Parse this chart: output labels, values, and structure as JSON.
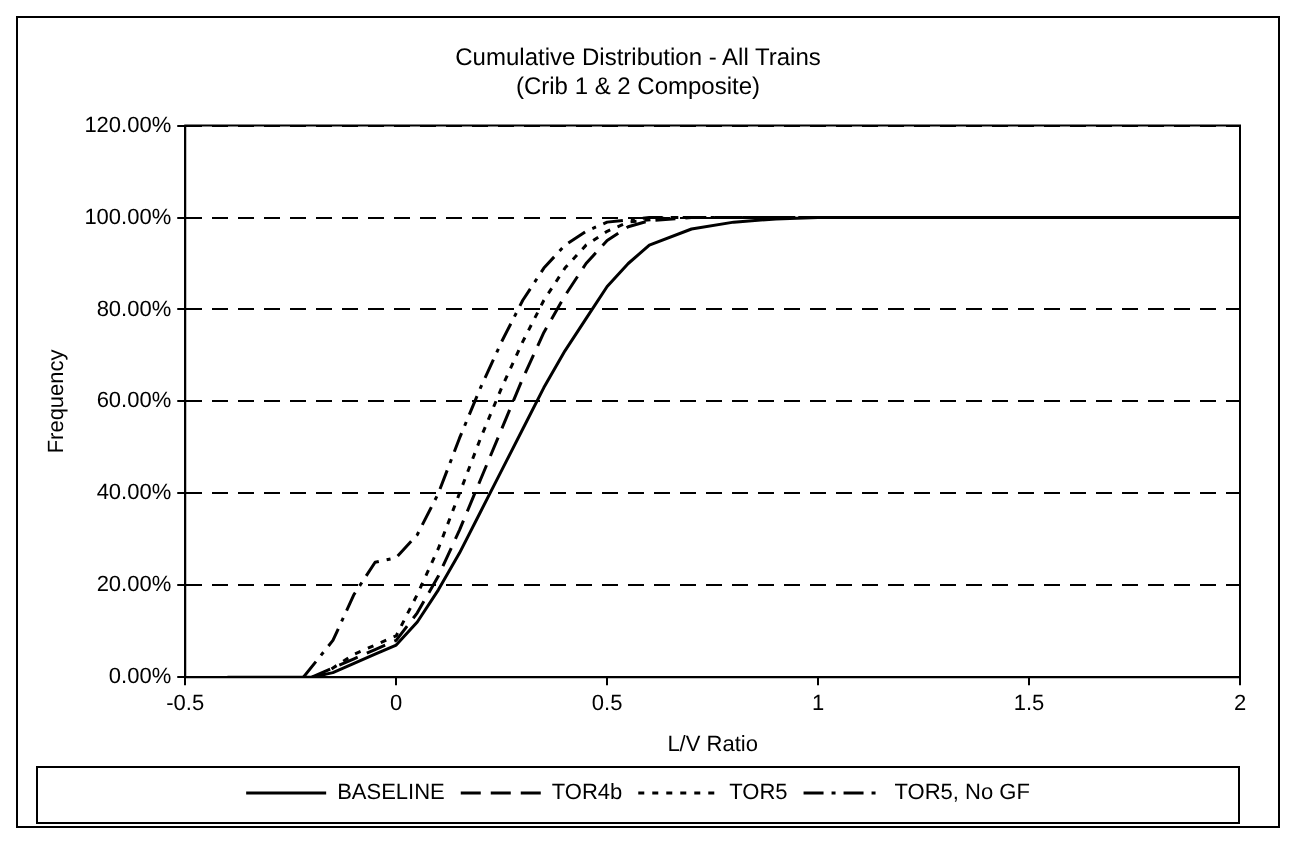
{
  "chart_data": {
    "type": "line",
    "title": [
      "Cumulative Distribution - All Trains",
      "(Crib 1 & 2 Composite)"
    ],
    "xlabel": "L/V Ratio",
    "ylabel": "Frequency",
    "xlim": [
      -0.5,
      2
    ],
    "xticks": [
      -0.5,
      0,
      0.5,
      1,
      1.5,
      2
    ],
    "ylim": [
      0,
      120
    ],
    "yticks": [
      {
        "value": 0,
        "label": "0.00%"
      },
      {
        "value": 20,
        "label": "20.00%"
      },
      {
        "value": 40,
        "label": "40.00%"
      },
      {
        "value": 60,
        "label": "60.00%"
      },
      {
        "value": 80,
        "label": "80.00%"
      },
      {
        "value": 100,
        "label": "100.00%"
      },
      {
        "value": 120,
        "label": "120.00%"
      }
    ],
    "grid": "y",
    "legend": "bottom",
    "marker": "none",
    "series": [
      {
        "name": "BASELINE",
        "color": "#000000",
        "line_style": "solid",
        "x": [
          -0.4,
          -0.2,
          -0.15,
          -0.1,
          -0.05,
          0,
          0.05,
          0.1,
          0.15,
          0.2,
          0.25,
          0.3,
          0.35,
          0.4,
          0.45,
          0.5,
          0.55,
          0.6,
          0.7,
          0.8,
          0.9,
          1,
          2
        ],
        "values": [
          0,
          0,
          1,
          3,
          5,
          7,
          12,
          19,
          27,
          36,
          45,
          54,
          63,
          71,
          78,
          85,
          90,
          94,
          97.5,
          99,
          99.7,
          100,
          100
        ]
      },
      {
        "name": "TOR4b",
        "color": "#000000",
        "line_style": "dashed",
        "x": [
          -0.2,
          -0.15,
          -0.1,
          -0.05,
          0,
          0.05,
          0.1,
          0.15,
          0.2,
          0.25,
          0.3,
          0.35,
          0.4,
          0.45,
          0.5,
          0.55,
          0.6,
          0.7,
          2
        ],
        "values": [
          0,
          2,
          4,
          6,
          8,
          14,
          22,
          32,
          43,
          54,
          65,
          75,
          83,
          90,
          95,
          98,
          99.3,
          100,
          100
        ]
      },
      {
        "name": "TOR5",
        "color": "#000000",
        "line_style": "dotted",
        "x": [
          -0.18,
          -0.15,
          -0.1,
          -0.05,
          0,
          0.05,
          0.1,
          0.15,
          0.2,
          0.25,
          0.3,
          0.35,
          0.4,
          0.45,
          0.5,
          0.55,
          0.65,
          2
        ],
        "values": [
          0,
          2,
          5,
          7,
          9,
          18,
          28,
          40,
          52,
          63,
          73,
          82,
          89,
          94,
          97,
          99,
          100,
          100
        ]
      },
      {
        "name": "TOR5, No GF",
        "color": "#000000",
        "line_style": "dashdot",
        "x": [
          -0.22,
          -0.15,
          -0.1,
          -0.05,
          0,
          0.05,
          0.1,
          0.15,
          0.2,
          0.25,
          0.3,
          0.35,
          0.4,
          0.45,
          0.5,
          0.6,
          2
        ],
        "values": [
          0,
          8,
          18,
          25,
          26,
          31,
          40,
          52,
          63,
          73,
          82,
          89,
          94,
          97,
          99,
          100,
          100
        ]
      }
    ]
  }
}
